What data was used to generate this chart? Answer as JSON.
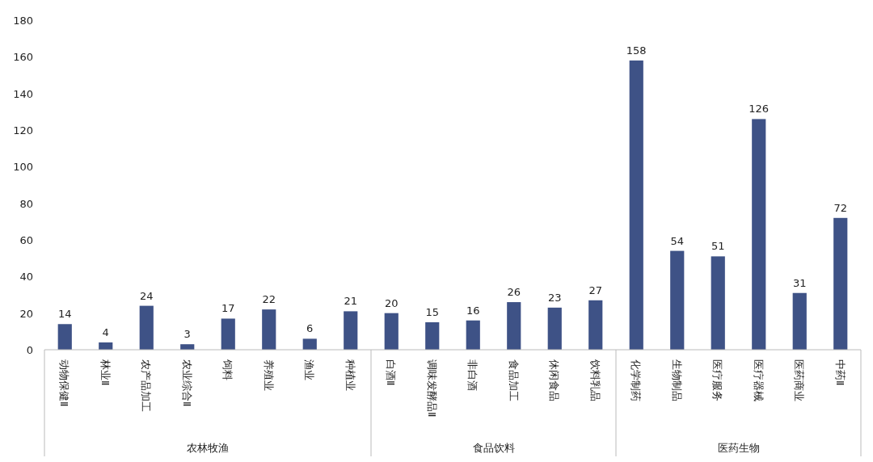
{
  "chart_data": [
    {
      "type": "bar",
      "xlabel": "农林牧渔",
      "categories": [
        "动物保健Ⅱ",
        "林业Ⅱ",
        "农产品加工",
        "农业综合Ⅱ",
        "饲料",
        "养殖业",
        "渔业",
        "种植业"
      ],
      "values": [
        14,
        4,
        24,
        3,
        17,
        22,
        6,
        21
      ],
      "color": "#3e5286",
      "ylim": [
        0,
        180
      ],
      "yticks": [
        0,
        20,
        40,
        60,
        80,
        100,
        120,
        140,
        160,
        180
      ],
      "data_labels": true
    },
    {
      "type": "bar",
      "xlabel": "食品饮料",
      "categories": [
        "白酒Ⅱ",
        "调味发酵品Ⅱ",
        "非白酒",
        "食品加工",
        "休闲食品",
        "饮料乳品"
      ],
      "values": [
        20,
        15,
        16,
        26,
        23,
        27
      ],
      "color": "#3e5286",
      "ylim": [
        0,
        180
      ],
      "tick_labels": "x",
      "data_labels": true
    },
    {
      "type": "bar",
      "xlabel": "医药生物",
      "categories": [
        "化学制药",
        "生物制品",
        "医疗服务",
        "医疗器械",
        "医药商业",
        "中药Ⅱ"
      ],
      "values": [
        158,
        54,
        51,
        126,
        31,
        72
      ],
      "color": "#3e5286",
      "ylim": [
        0,
        180
      ],
      "tick_labels": "x",
      "data_labels": true
    }
  ]
}
